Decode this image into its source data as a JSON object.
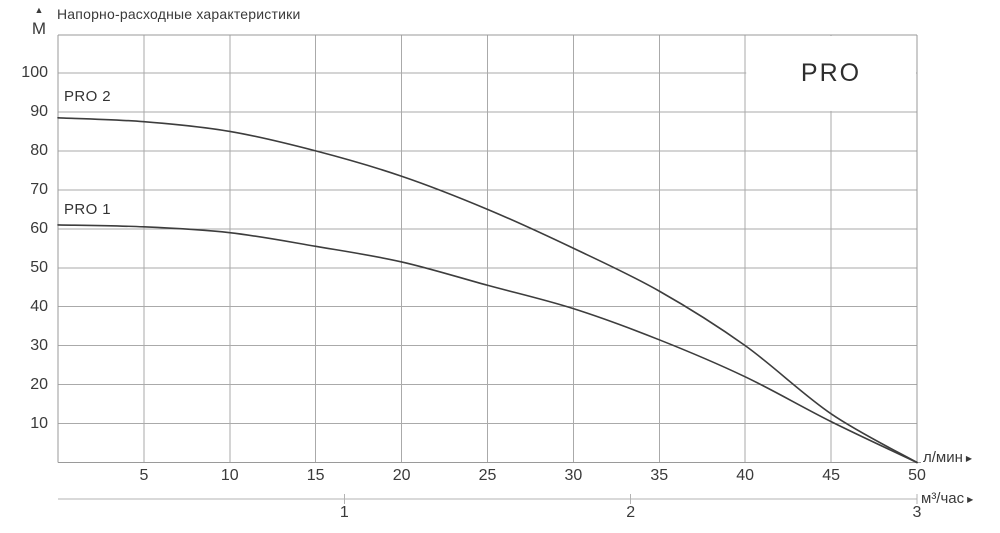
{
  "header": {
    "title": "Напорно-расходные характеристики"
  },
  "badge": {
    "label": "PRO"
  },
  "axes": {
    "y_unit": "М",
    "x_unit_primary": "л/мин",
    "x_unit_secondary": "м³/час"
  },
  "icons": {
    "y_axis_arrow": "▲",
    "x_axis_arrow": "▶"
  },
  "chart_data": {
    "type": "line",
    "title": "Напорно-расходные характеристики",
    "ylabel": "М",
    "xlabel_primary": "л/мин",
    "xlabel_secondary": "м³/час",
    "xlim": [
      0,
      50
    ],
    "ylim": [
      0,
      110
    ],
    "grid": true,
    "legend_position": "inline-labels",
    "y_ticks": [
      10,
      20,
      30,
      40,
      50,
      60,
      70,
      80,
      90,
      100
    ],
    "x_primary_ticks": [
      5,
      10,
      15,
      20,
      25,
      30,
      35,
      40,
      45,
      50
    ],
    "x_secondary_ticks": [
      1,
      2,
      3
    ],
    "x_secondary_to_primary_factor": 16.6667,
    "x": [
      0,
      5,
      10,
      15,
      20,
      25,
      30,
      35,
      40,
      45,
      50
    ],
    "series": [
      {
        "name": "PRO 2",
        "values": [
          88.5,
          87.5,
          85,
          80,
          73.5,
          65,
          55,
          44,
          30,
          12.5,
          0
        ]
      },
      {
        "name": "PRO 1",
        "values": [
          61,
          60.5,
          59,
          55.5,
          51.5,
          45.5,
          39.5,
          31.5,
          22,
          10.5,
          0
        ]
      }
    ]
  }
}
